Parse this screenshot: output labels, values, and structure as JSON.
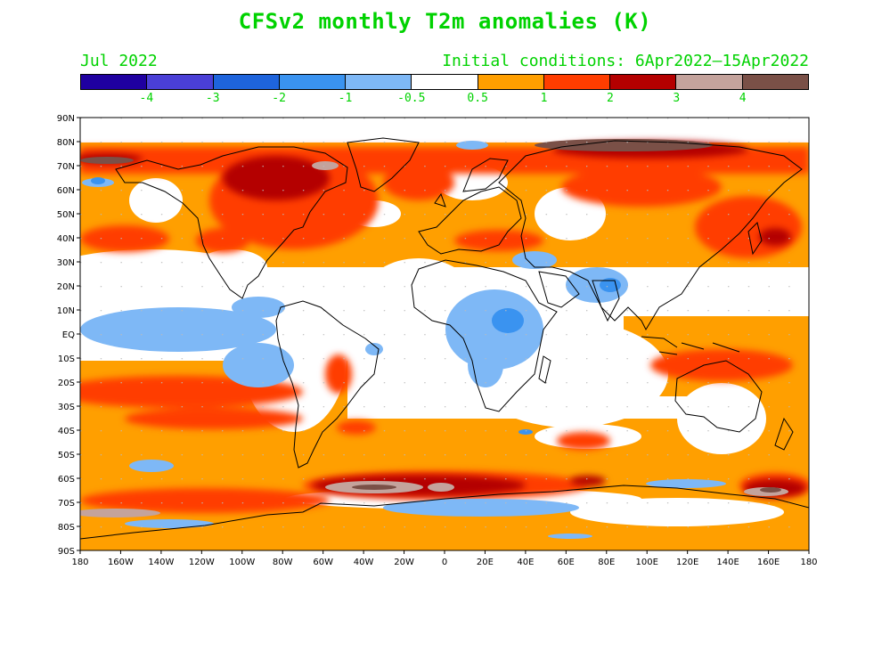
{
  "title": "CFSv2 monthly T2m anomalies (K)",
  "valid_month": "Jul 2022",
  "initial_conditions": "Initial conditions: 6Apr2022–15Apr2022",
  "colorbar": {
    "colors": [
      "#1f00a0",
      "#4a3fd6",
      "#1e64dc",
      "#3a93f0",
      "#7eb8f6",
      "#ffffff",
      "#ff9f00",
      "#ff3d00",
      "#b40000",
      "#c4a39c",
      "#7a5047"
    ],
    "labels": [
      "-4",
      "-3",
      "-2",
      "-1",
      "-0.5",
      "0.5",
      "1",
      "2",
      "3",
      "4"
    ]
  },
  "lat_labels": [
    "90N",
    "80N",
    "70N",
    "60N",
    "50N",
    "40N",
    "30N",
    "20N",
    "10N",
    "EQ",
    "10S",
    "20S",
    "30S",
    "40S",
    "50S",
    "60S",
    "70S",
    "80S",
    "90S"
  ],
  "lon_labels": [
    "180",
    "160W",
    "140W",
    "120W",
    "100W",
    "80W",
    "60W",
    "40W",
    "20W",
    "0",
    "20E",
    "40E",
    "60E",
    "80E",
    "100E",
    "120E",
    "140E",
    "160E",
    "180"
  ]
}
